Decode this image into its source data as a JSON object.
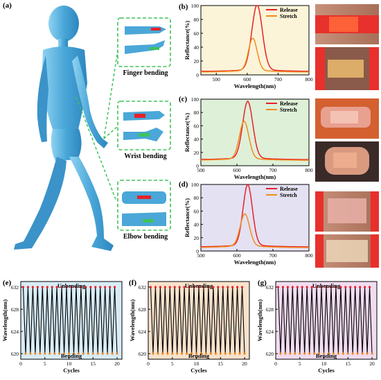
{
  "figure": {
    "panel_labels": [
      "(a)",
      "(b)",
      "(c)",
      "(d)",
      "(e)",
      "(f)",
      "(g)"
    ],
    "bending_labels": [
      "Finger bending",
      "Wrist bending",
      "Elbow bending"
    ]
  },
  "colors": {
    "release": "#e8202a",
    "stretch": "#f08c1e",
    "b_bg": "#fbf4d8",
    "c_bg": "#dff0d8",
    "d_bg": "#e4e1f2",
    "e_bg": "#d8ecf6",
    "f_bg": "#f8e2cc",
    "g_bg": "#f1dcf0",
    "body": "#5ab4e0",
    "frame": "#3ec35a",
    "marker_top": "#e8202a",
    "marker_bottom": "#f08c1e"
  },
  "chart_data": [
    {
      "id": "b",
      "type": "line",
      "xlabel": "Wavelength(nm)",
      "ylabel": "Reflectance(%)",
      "xlim": [
        450,
        800
      ],
      "ylim": [
        0,
        100
      ],
      "xticks": [
        500,
        600,
        700,
        800
      ],
      "yticks": [
        0,
        20,
        40,
        60,
        80,
        100
      ],
      "legend": "top-right",
      "series": [
        {
          "name": "Release",
          "peak": 632,
          "height": 92,
          "base": 5,
          "width": 17
        },
        {
          "name": "Stretch",
          "peak": 618,
          "height": 45,
          "base": 4,
          "width": 14
        }
      ]
    },
    {
      "id": "c",
      "type": "line",
      "xlabel": "Wavelength(nm)",
      "ylabel": "Reflectance(%)",
      "xlim": [
        500,
        800
      ],
      "ylim": [
        0,
        100
      ],
      "xticks": [
        500,
        600,
        700,
        800
      ],
      "yticks": [
        0,
        20,
        40,
        60,
        80,
        100
      ],
      "legend": "top-right",
      "series": [
        {
          "name": "Release",
          "peak": 630,
          "height": 84,
          "base": 9,
          "width": 14
        },
        {
          "name": "Stretch",
          "peak": 620,
          "height": 55,
          "base": 8,
          "width": 13
        }
      ]
    },
    {
      "id": "d",
      "type": "line",
      "xlabel": "Wavelength(nm)",
      "ylabel": "Reflectance(%)",
      "xlim": [
        500,
        800
      ],
      "ylim": [
        0,
        100
      ],
      "xticks": [
        500,
        600,
        700,
        800
      ],
      "yticks": [
        0,
        20,
        40,
        60,
        80,
        100
      ],
      "legend": "top-right",
      "series": [
        {
          "name": "Release",
          "peak": 630,
          "height": 90,
          "base": 6,
          "width": 13
        },
        {
          "name": "Stretch",
          "peak": 622,
          "height": 47,
          "base": 5,
          "width": 13
        }
      ]
    },
    {
      "id": "e",
      "type": "line",
      "xlabel": "Cycles",
      "ylabel": "Wavelength(nm)",
      "xlim": [
        0,
        21
      ],
      "ylim": [
        619,
        633
      ],
      "xticks": [
        0,
        5,
        10,
        15,
        20
      ],
      "yticks": [
        620,
        624,
        628,
        632
      ],
      "top_text": "Unbending",
      "bottom_text": "Bending",
      "high": 632,
      "low": 620,
      "cycles": 20
    },
    {
      "id": "f",
      "type": "line",
      "xlabel": "Cycles",
      "ylabel": "Wavelength(nm)",
      "xlim": [
        0,
        21
      ],
      "ylim": [
        619,
        633
      ],
      "xticks": [
        0,
        5,
        10,
        15,
        20
      ],
      "yticks": [
        620,
        624,
        628,
        632
      ],
      "top_text": "Unbending",
      "bottom_text": "Bending",
      "high": 632,
      "low": 620,
      "cycles": 20
    },
    {
      "id": "g",
      "type": "line",
      "xlabel": "Cycles",
      "ylabel": "Wavelength(nm)",
      "xlim": [
        0,
        21
      ],
      "ylim": [
        619,
        633
      ],
      "xticks": [
        0,
        5,
        10,
        15,
        20
      ],
      "yticks": [
        620,
        624,
        628,
        632
      ],
      "top_text": "Unbending",
      "bottom_text": "Bending",
      "high": 632,
      "low": 620,
      "cycles": 20
    }
  ]
}
